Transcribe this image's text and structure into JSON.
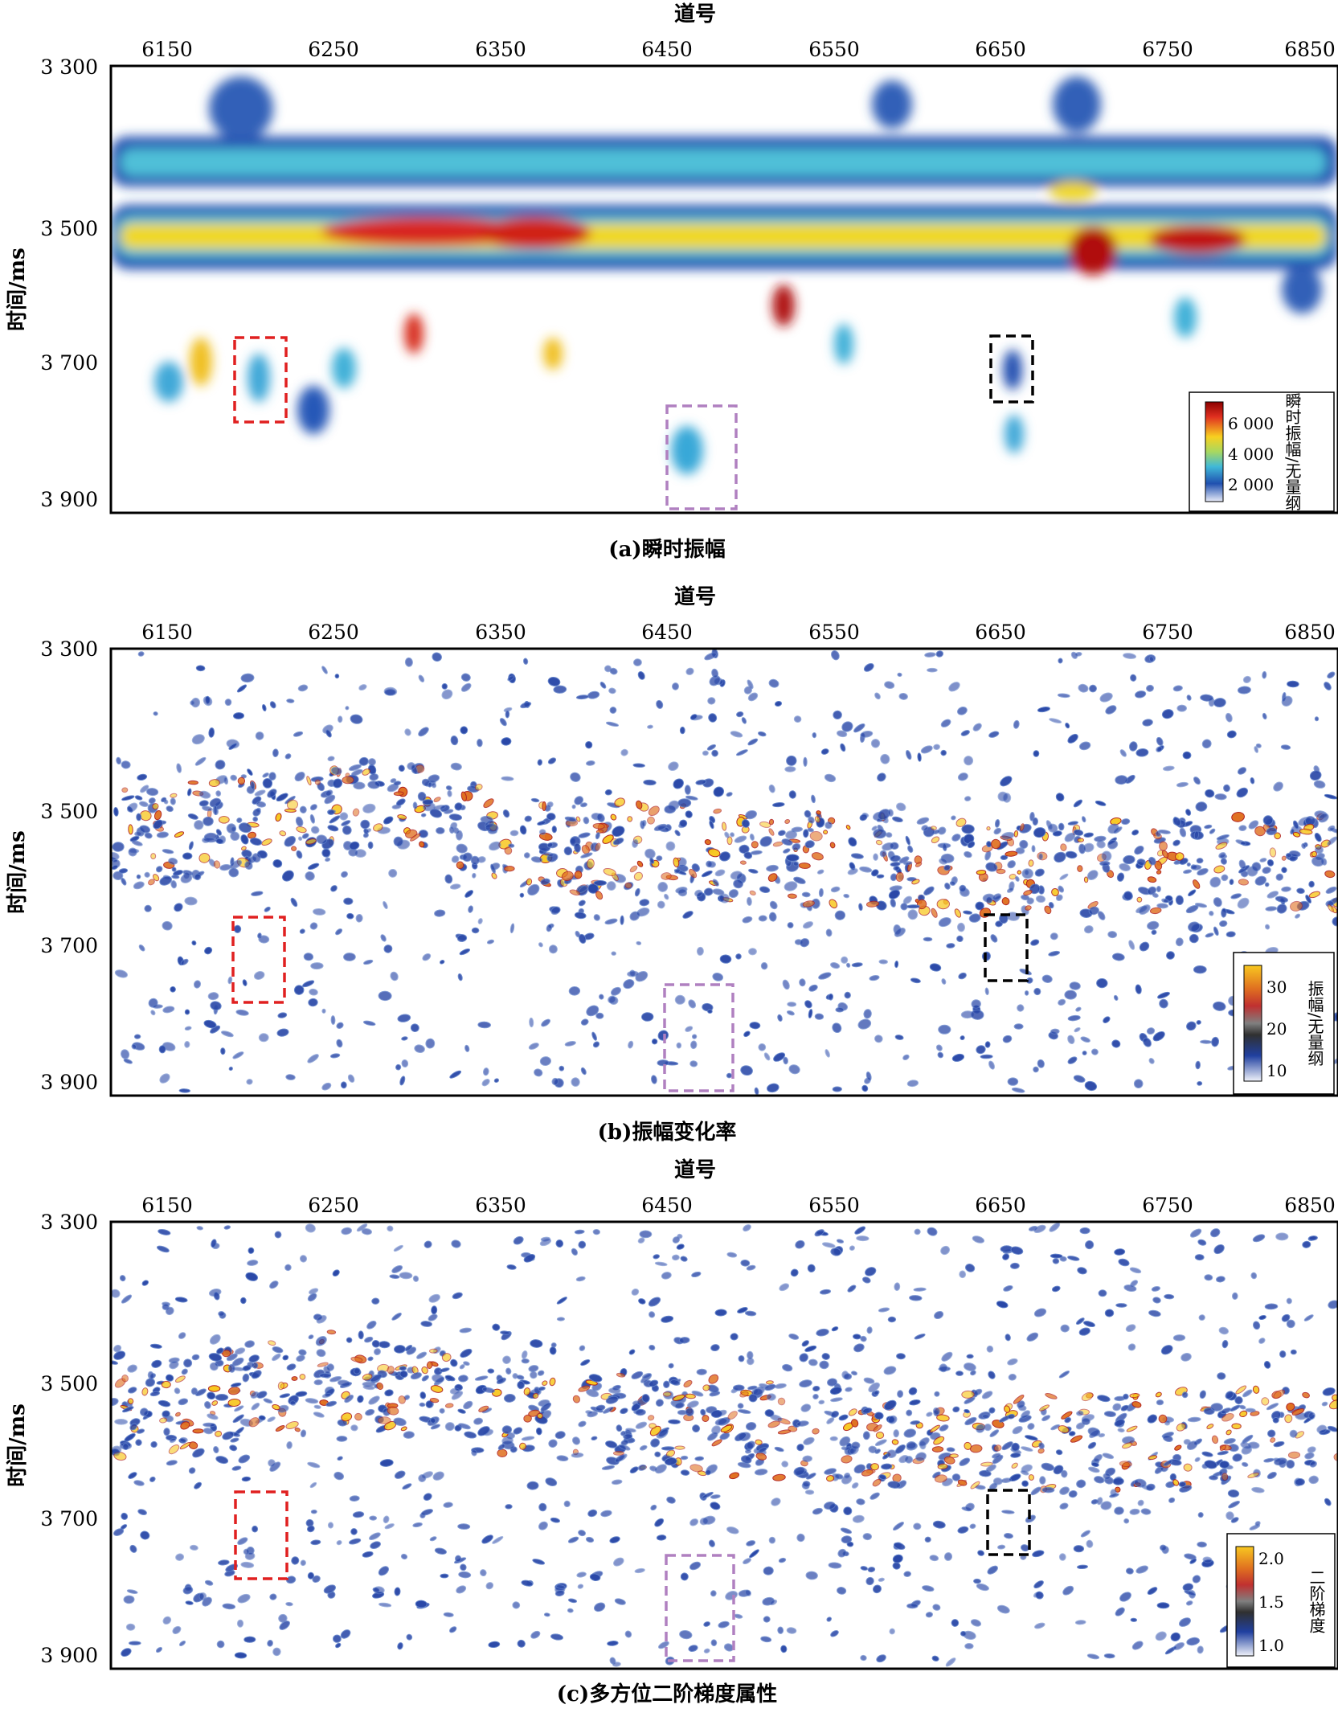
{
  "panels": [
    {
      "caption": "(a)瞬时振幅",
      "xlabel": "道号",
      "ylabel": "时间/ms",
      "xticks": [
        "6150",
        "6250",
        "6350",
        "6450",
        "6550",
        "6650",
        "6750",
        "6850"
      ],
      "yticks": [
        "3 300",
        "3 500",
        "3 700",
        "3 900"
      ],
      "colorbar": {
        "label": "瞬时振幅/无量纲",
        "ticks": [
          "6 000",
          "4 000",
          "2 000"
        ],
        "colors": [
          "#8b0000",
          "#e03020",
          "#f8d020",
          "#a8d860",
          "#40b8d8",
          "#2050b0",
          "#e8ecf8"
        ]
      },
      "boxes": [
        {
          "color": "#e02020"
        },
        {
          "color": "#b080c0"
        },
        {
          "color": "#000000"
        }
      ]
    },
    {
      "caption": "(b)振幅变化率",
      "xlabel": "道号",
      "ylabel": "时间/ms",
      "xticks": [
        "6150",
        "6250",
        "6350",
        "6450",
        "6550",
        "6650",
        "6750",
        "6850"
      ],
      "yticks": [
        "3 300",
        "3 500",
        "3 700",
        "3 900"
      ],
      "colorbar": {
        "label": "振幅/无量纲",
        "ticks": [
          "30",
          "20",
          "10"
        ],
        "colors": [
          "#f8c820",
          "#e07020",
          "#c03030",
          "#808080",
          "#303030",
          "#2040a0",
          "#f0f2fa"
        ]
      },
      "boxes": [
        {
          "color": "#e02020"
        },
        {
          "color": "#b080c0"
        },
        {
          "color": "#000000"
        }
      ]
    },
    {
      "caption": "(c)多方位二阶梯度属性",
      "xlabel": "道号",
      "ylabel": "时间/ms",
      "xticks": [
        "6150",
        "6250",
        "6350",
        "6450",
        "6550",
        "6650",
        "6750",
        "6850"
      ],
      "yticks": [
        "3 300",
        "3 500",
        "3 700",
        "3 900"
      ],
      "colorbar": {
        "label": "二阶梯度",
        "ticks": [
          "2.0",
          "1.5",
          "1.0"
        ],
        "colors": [
          "#f8c820",
          "#e07020",
          "#c03030",
          "#808080",
          "#303030",
          "#2040a0",
          "#f0f2fa"
        ]
      },
      "boxes": [
        {
          "color": "#e02020"
        },
        {
          "color": "#b080c0"
        },
        {
          "color": "#000000"
        }
      ]
    }
  ],
  "chart_data": [
    {
      "type": "heatmap",
      "title": "(a)瞬时振幅",
      "xlabel": "道号",
      "ylabel": "时间/ms",
      "xlim": [
        6115,
        6855
      ],
      "ylim": [
        3300,
        3910
      ],
      "colorbar": {
        "label": "瞬时振幅/无量纲",
        "range": [
          1000,
          7000
        ]
      },
      "features": [
        {
          "kind": "horizon",
          "t_ms": 3440,
          "x": [
            6115,
            6855
          ],
          "amplitude": 3500
        },
        {
          "kind": "horizon",
          "t_ms": 3505,
          "x": [
            6115,
            6855
          ],
          "amplitude": 5000
        },
        {
          "kind": "bright_spot",
          "x": 6290,
          "t_ms": 3505,
          "amplitude": 6500
        },
        {
          "kind": "bright_spot",
          "x": 6375,
          "t_ms": 3505,
          "amplitude": 6800
        },
        {
          "kind": "bright_spot",
          "x": 6530,
          "t_ms": 3610,
          "amplitude": 6800
        },
        {
          "kind": "bright_spot",
          "x": 6712,
          "t_ms": 3530,
          "amplitude": 7000
        },
        {
          "kind": "bright_spot",
          "x": 6775,
          "t_ms": 3510,
          "amplitude": 6500
        }
      ],
      "highlight_boxes": [
        {
          "color": "red",
          "x": [
            6190,
            6222
          ],
          "t_ms": [
            3660,
            3790
          ]
        },
        {
          "color": "purple",
          "x": [
            6450,
            6490
          ],
          "t_ms": [
            3765,
            3915
          ]
        },
        {
          "color": "black",
          "x": [
            6652,
            6676
          ],
          "t_ms": [
            3660,
            3760
          ]
        }
      ]
    },
    {
      "type": "heatmap",
      "title": "(b)振幅变化率",
      "xlabel": "道号",
      "ylabel": "时间/ms",
      "xlim": [
        6115,
        6855
      ],
      "ylim": [
        3300,
        3905
      ],
      "colorbar": {
        "label": "振幅/无量纲",
        "range": [
          8,
          35
        ]
      },
      "highlight_boxes": [
        {
          "color": "red",
          "x": [
            6190,
            6222
          ],
          "t_ms": [
            3660,
            3780
          ]
        },
        {
          "color": "purple",
          "x": [
            6450,
            6490
          ],
          "t_ms": [
            3760,
            3905
          ]
        },
        {
          "color": "black",
          "x": [
            6650,
            6674
          ],
          "t_ms": [
            3660,
            3750
          ]
        }
      ]
    },
    {
      "type": "heatmap",
      "title": "(c)多方位二阶梯度属性",
      "xlabel": "道号",
      "ylabel": "时间/ms",
      "xlim": [
        6115,
        6855
      ],
      "ylim": [
        3300,
        3910
      ],
      "colorbar": {
        "label": "二阶梯度",
        "range": [
          0.8,
          2.1
        ]
      },
      "highlight_boxes": [
        {
          "color": "red",
          "x": [
            6192,
            6222
          ],
          "t_ms": [
            3655,
            3780
          ]
        },
        {
          "color": "purple",
          "x": [
            6450,
            6490
          ],
          "t_ms": [
            3755,
            3910
          ]
        },
        {
          "color": "black",
          "x": [
            6652,
            6676
          ],
          "t_ms": [
            3655,
            3750
          ]
        }
      ]
    }
  ]
}
